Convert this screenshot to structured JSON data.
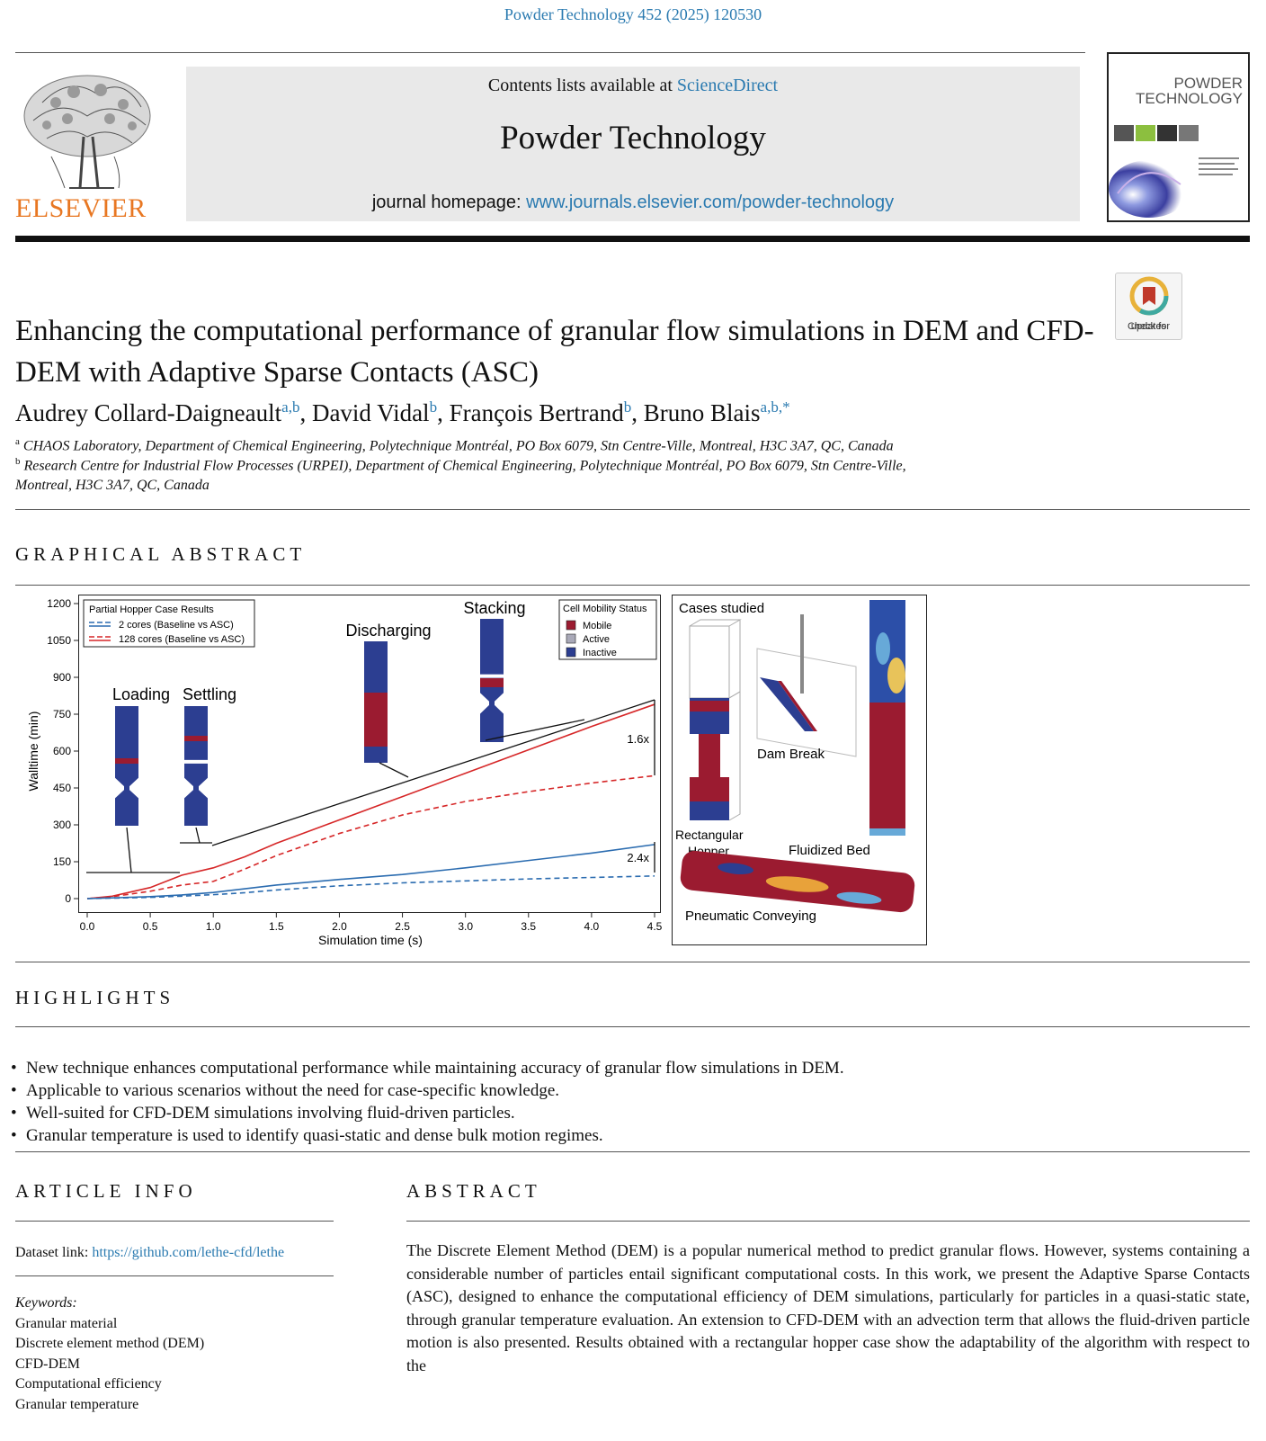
{
  "journal_ref": "Powder Technology 452 (2025) 120530",
  "header": {
    "contents_prefix": "Contents lists available at ",
    "contents_link": "ScienceDirect",
    "journal_name": "Powder Technology",
    "homepage_prefix": "journal homepage: ",
    "homepage_link": "www.journals.elsevier.com/powder-technology",
    "publisher": "ELSEVIER",
    "cover_title_1": "POWDER",
    "cover_title_2": "TECHNOLOGY"
  },
  "check_updates": {
    "line1": "Check for",
    "line2": "updates"
  },
  "article": {
    "title": "Enhancing the computational performance of granular flow simulations in DEM and CFD-DEM with Adaptive Sparse Contacts (ASC)",
    "authors": [
      {
        "name": "Audrey Collard-Daigneault",
        "sup": "a,b",
        "sep": ", "
      },
      {
        "name": "David Vidal",
        "sup": "b",
        "sep": ", "
      },
      {
        "name": "François Bertrand",
        "sup": "b",
        "sep": ", "
      },
      {
        "name": "Bruno Blais",
        "sup": "a,b,*",
        "sep": ""
      }
    ],
    "affiliations": [
      {
        "mark": "a",
        "text": "CHAOS Laboratory, Department of Chemical Engineering, Polytechnique Montréal, PO Box 6079, Stn Centre-Ville, Montreal, H3C 3A7, QC, Canada"
      },
      {
        "mark": "b",
        "text": "Research Centre for Industrial Flow Processes (URPEI), Department of Chemical Engineering, Polytechnique Montréal, PO Box 6079, Stn Centre-Ville, Montreal, H3C 3A7, QC, Canada"
      }
    ]
  },
  "sections": {
    "graphical_abstract": "GRAPHICAL ABSTRACT",
    "highlights": "HIGHLIGHTS",
    "article_info": "ARTICLE INFO",
    "abstract": "ABSTRACT"
  },
  "chart_data": {
    "type": "line",
    "title": "Partial Hopper Case Results",
    "xlabel": "Simulation time (s)",
    "ylabel": "Walltime (min)",
    "xlim": [
      0,
      4.5
    ],
    "ylim": [
      0,
      1200
    ],
    "xticks": [
      "0.0",
      "0.5",
      "1.0",
      "1.5",
      "2.0",
      "2.5",
      "3.0",
      "3.5",
      "4.0",
      "4.5"
    ],
    "yticks": [
      "0",
      "150",
      "300",
      "450",
      "600",
      "750",
      "900",
      "1050",
      "1200"
    ],
    "legend_position": "top-left",
    "x": [
      0,
      0.2,
      0.5,
      0.75,
      1.0,
      1.25,
      1.5,
      2.0,
      2.5,
      3.0,
      3.5,
      4.0,
      4.5
    ],
    "series": [
      {
        "name": "128 cores (Baseline vs ASC)",
        "role": "baseline",
        "color": "#d62728",
        "dash": false,
        "values": [
          0,
          10,
          45,
          95,
          125,
          170,
          225,
          320,
          415,
          510,
          605,
          700,
          790
        ]
      },
      {
        "name": "128 cores (Baseline vs ASC)",
        "role": "asc",
        "color": "#d62728",
        "dash": true,
        "values": [
          0,
          8,
          30,
          55,
          70,
          120,
          175,
          265,
          340,
          395,
          435,
          470,
          500
        ]
      },
      {
        "name": "2 cores (Baseline vs ASC)",
        "role": "baseline",
        "color": "#2b6cb0",
        "dash": false,
        "values": [
          0,
          3,
          8,
          15,
          25,
          40,
          55,
          78,
          98,
          125,
          155,
          185,
          220
        ]
      },
      {
        "name": "2 cores (Baseline vs ASC)",
        "role": "asc",
        "color": "#2b6cb0",
        "dash": true,
        "values": [
          0,
          2,
          5,
          10,
          16,
          24,
          35,
          52,
          64,
          72,
          80,
          86,
          92
        ]
      }
    ],
    "legend_entries": [
      "2 cores (Baseline vs ASC)",
      "128 cores (Baseline vs ASC)"
    ],
    "stage_labels": [
      "Loading",
      "Settling",
      "Discharging",
      "Stacking"
    ],
    "speedups": [
      "1.6x",
      "2.4x"
    ],
    "status_legend": {
      "title": "Cell Mobility Status",
      "items": [
        {
          "label": "Mobile",
          "color": "#9b1b30"
        },
        {
          "label": "Active",
          "color": "#a9a9b8"
        },
        {
          "label": "Inactive",
          "color": "#2c3e91"
        }
      ]
    }
  },
  "cases": {
    "title": "Cases studied",
    "labels": {
      "hopper_1": "Rectangular",
      "hopper_2": "Hopper",
      "dam": "Dam Break",
      "bed": "Fluidized Bed",
      "pneumatic": "Pneumatic Conveying"
    }
  },
  "highlights": [
    "New technique enhances computational performance while maintaining accuracy of granular flow simulations in DEM.",
    "Applicable to various scenarios without the need for case-specific knowledge.",
    "Well-suited for CFD-DEM simulations involving fluid-driven particles.",
    "Granular temperature is used to identify quasi-static and dense bulk motion regimes."
  ],
  "article_info": {
    "dataset_label": "Dataset link: ",
    "dataset_link": "https://github.com/lethe-cfd/lethe",
    "keywords_label": "Keywords:",
    "keywords": [
      "Granular material",
      "Discrete element method (DEM)",
      "CFD-DEM",
      "Computational efficiency",
      "Granular temperature"
    ]
  },
  "abstract": "The Discrete Element Method (DEM) is a popular numerical method to predict granular flows. However, systems containing a considerable number of particles entail significant computational costs. In this work, we present the Adaptive Sparse Contacts (ASC), designed to enhance the computational efficiency of DEM simulations, particularly for particles in a quasi-static state, through granular temperature evaluation. An extension to CFD-DEM with an advection term that allows the fluid-driven particle motion is also presented. Results obtained with a rectangular hopper case show the adaptability of the algorithm with respect to the",
  "colors": {
    "link": "#2a7ab0",
    "elsevier_orange": "#e87722",
    "header_bg": "#e9e9e9"
  }
}
